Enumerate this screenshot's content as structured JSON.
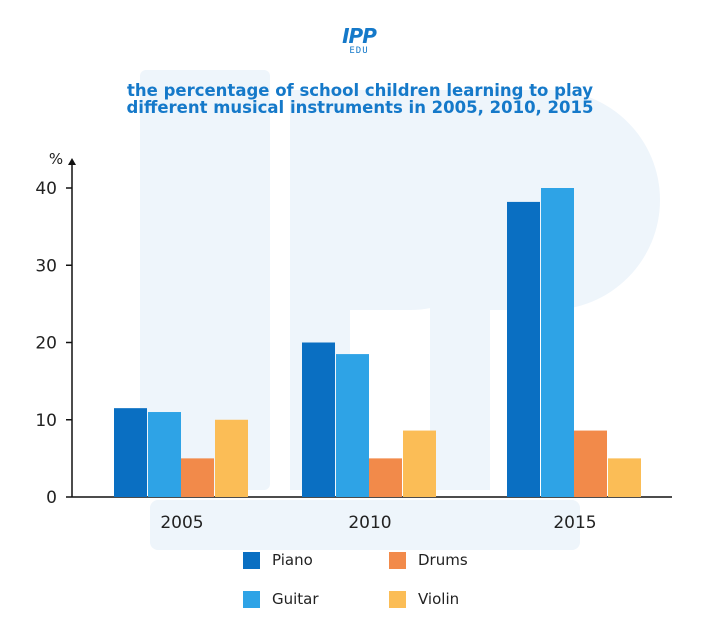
{
  "logo": {
    "main": "IPP",
    "sub": "EDU"
  },
  "title_lines": [
    "the percentage of school children learning to play",
    "different musical instruments in 2005, 2010, 2015"
  ],
  "colors": {
    "Piano": "#0a6fc2",
    "Guitar": "#2ea3e6",
    "Drums": "#f28a4a",
    "Violin": "#fbbd56",
    "title": "#1579c9",
    "axis": "#111111"
  },
  "chart_data": {
    "type": "bar",
    "title": "the percentage of school children learning to play different musical instruments in 2005, 2010, 2015",
    "ylabel": "%",
    "xlabel": "",
    "ylim": [
      0,
      42
    ],
    "yticks": [
      0,
      10,
      20,
      30,
      40
    ],
    "grid": false,
    "categories": [
      "2005",
      "2010",
      "2015"
    ],
    "series": [
      {
        "name": "Piano",
        "values": [
          11.5,
          20,
          38.2
        ]
      },
      {
        "name": "Guitar",
        "values": [
          11,
          18.5,
          40
        ]
      },
      {
        "name": "Drums",
        "values": [
          5,
          5,
          8.6
        ]
      },
      {
        "name": "Violin",
        "values": [
          10,
          8.6,
          5
        ]
      }
    ],
    "legend_position": "bottom"
  },
  "legend": [
    {
      "label": "Piano"
    },
    {
      "label": "Drums"
    },
    {
      "label": "Guitar"
    },
    {
      "label": "Violin"
    }
  ]
}
